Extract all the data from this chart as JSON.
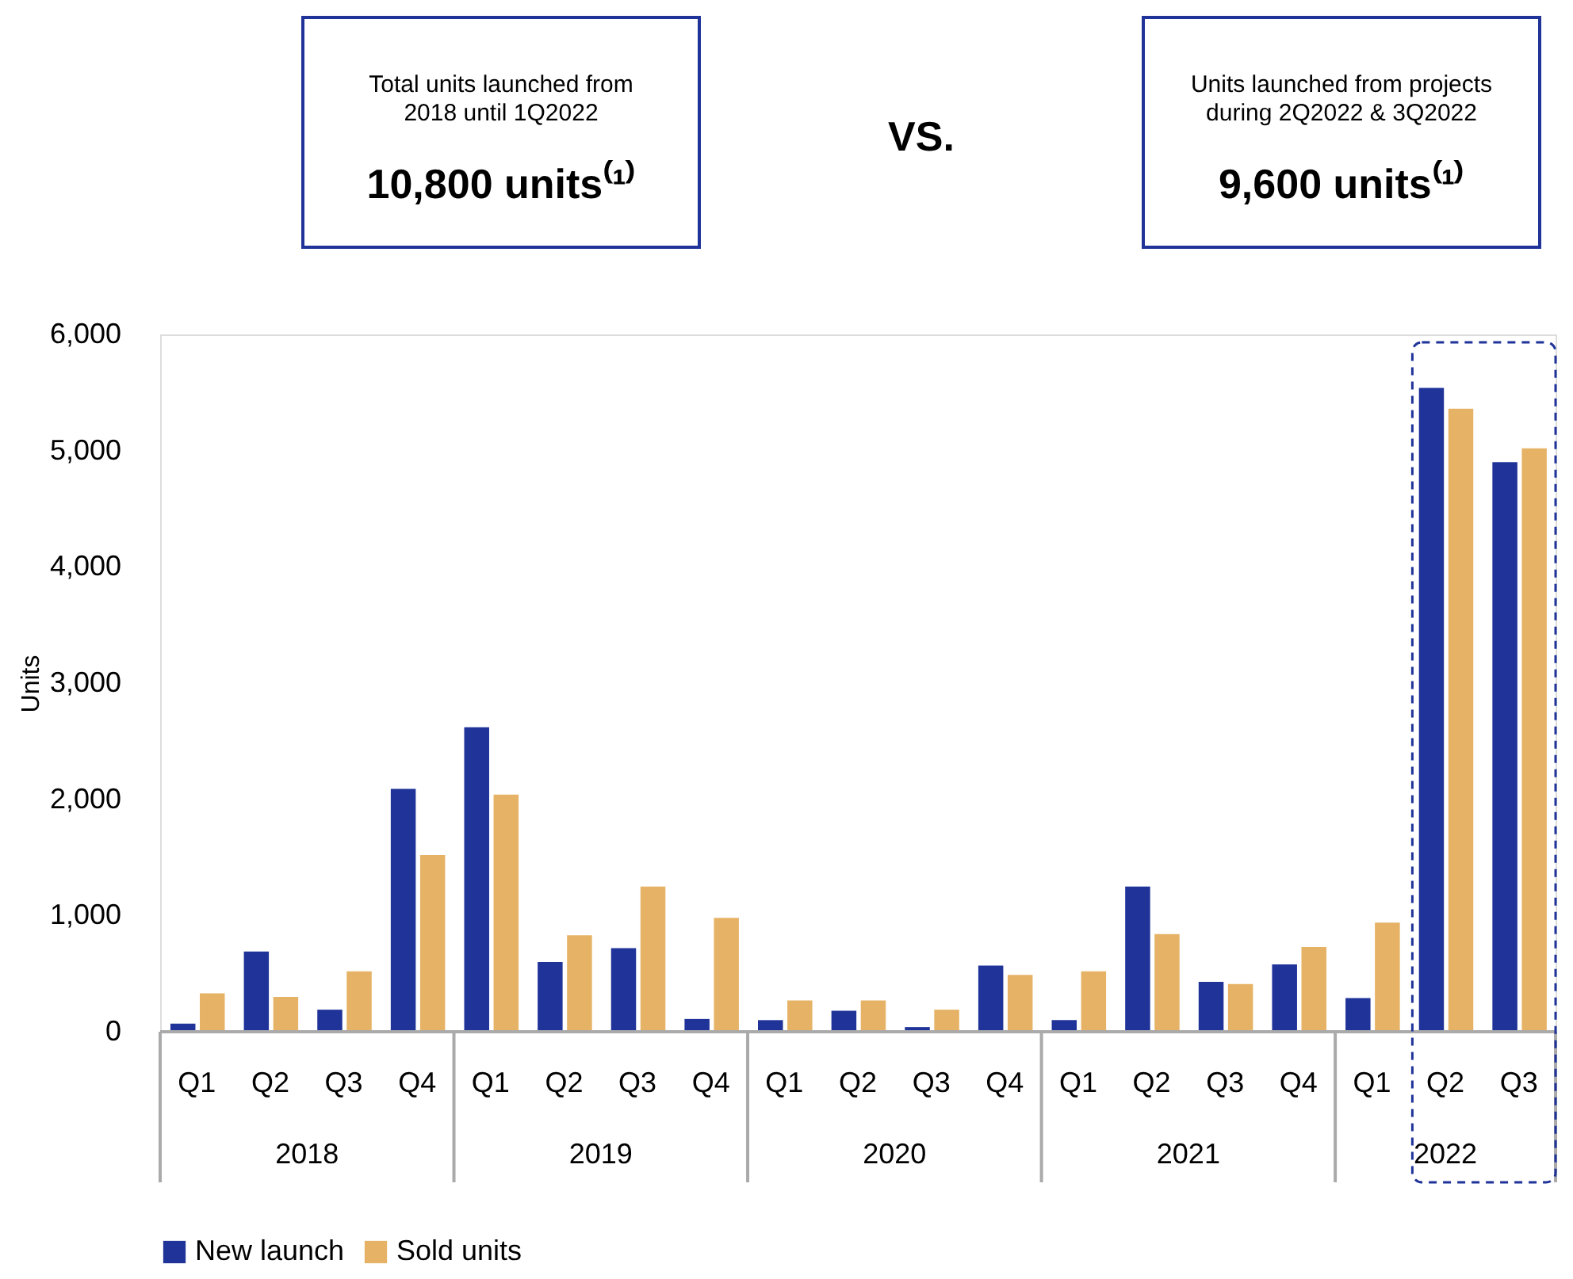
{
  "chart_data": {
    "type": "bar",
    "categories": [
      "Q1",
      "Q2",
      "Q3",
      "Q4",
      "Q1",
      "Q2",
      "Q3",
      "Q4",
      "Q1",
      "Q2",
      "Q3",
      "Q4",
      "Q1",
      "Q2",
      "Q3",
      "Q4",
      "Q1",
      "Q2",
      "Q3"
    ],
    "series": [
      {
        "name": "New launch",
        "color": "#1f3399",
        "values": [
          70,
          690,
          190,
          2090,
          2620,
          600,
          720,
          110,
          100,
          180,
          40,
          570,
          100,
          1250,
          430,
          580,
          290,
          5540,
          4900
        ]
      },
      {
        "name": "Sold units",
        "color": "#e6b366",
        "values": [
          330,
          300,
          520,
          1520,
          2040,
          830,
          1250,
          980,
          270,
          270,
          190,
          490,
          520,
          840,
          410,
          730,
          940,
          5360,
          5020
        ]
      }
    ],
    "ylabel": "Units",
    "ylim": [
      0,
      6000
    ],
    "yticks": [
      0,
      {
        "value": 1000,
        "label": "1,000"
      },
      {
        "value": 2000,
        "label": "2,000"
      },
      {
        "value": 3000,
        "label": "3,000"
      },
      {
        "value": 4000,
        "label": "4,000"
      },
      {
        "value": 5000,
        "label": "5,000"
      },
      {
        "value": 6000,
        "label": "6,000"
      }
    ],
    "grid": false,
    "legend": "bottom",
    "annotations": [
      "Total units launched from 2018 until 1Q2022",
      "10,800 units⁽¹⁾",
      "VS.",
      "Units launched from projects during 2Q2022 & 3Q2022",
      "9,600 units⁽¹⁾",
      "2018",
      "2019",
      "2020",
      "2021",
      "2022"
    ]
  }
}
